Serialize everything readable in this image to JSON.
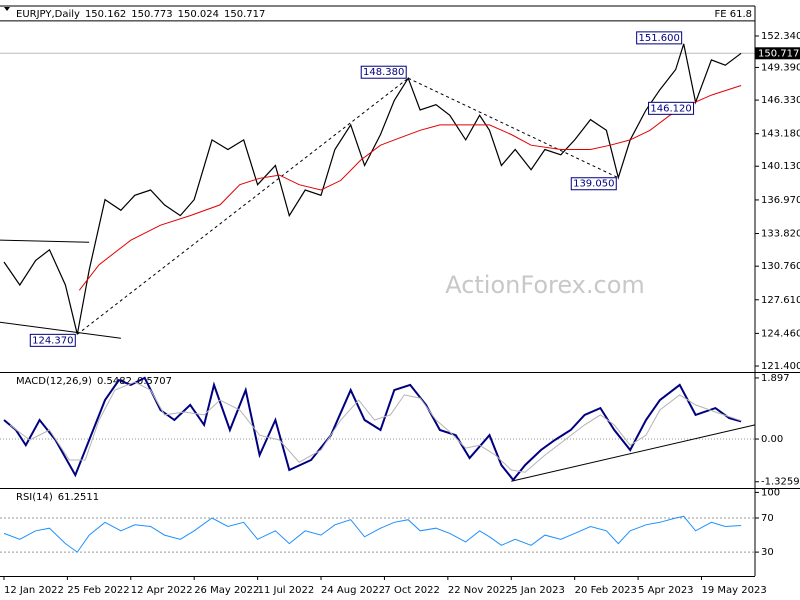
{
  "chart_data": [
    {
      "type": "line",
      "title": "EURJPY,Daily",
      "ohlc": [
        150.162,
        150.773,
        150.024,
        150.717
      ],
      "watermark": "ActionForex.com",
      "xlim": [
        -2,
        379
      ],
      "ylim": [
        120.84,
        155.15
      ],
      "yticks": [
        {
          "value": 152.34,
          "label": "152.340"
        },
        {
          "value": 149.39,
          "label": "149.390"
        },
        {
          "value": 146.33,
          "label": "146.330"
        },
        {
          "value": 143.18,
          "label": "143.180"
        },
        {
          "value": 140.13,
          "label": "140.130"
        },
        {
          "value": 136.97,
          "label": "136.970"
        },
        {
          "value": 133.82,
          "label": "133.820"
        },
        {
          "value": 130.76,
          "label": "130.760"
        },
        {
          "value": 127.61,
          "label": "127.610"
        },
        {
          "value": 124.46,
          "label": "124.460"
        },
        {
          "value": 121.4,
          "label": "121.400"
        }
      ],
      "series": [
        {
          "color": "#000000",
          "width": 1.2,
          "x": [
            0,
            8,
            16,
            23,
            31,
            37,
            43,
            51,
            59,
            66,
            74,
            81,
            89,
            96,
            105,
            113,
            121,
            128,
            137,
            144,
            152,
            160,
            167,
            175,
            182,
            190,
            197,
            204,
            210,
            218,
            225,
            233,
            240,
            245,
            251,
            258,
            266,
            273,
            281,
            288,
            296,
            304,
            310,
            316,
            324,
            331,
            339,
            343,
            349,
            357,
            364,
            372
          ],
          "values": [
            131.15,
            129,
            131.3,
            132.3,
            129,
            124.37,
            130.4,
            137,
            136,
            137.4,
            137.9,
            136.5,
            135.5,
            137,
            142.6,
            141.7,
            142.6,
            138.4,
            140.2,
            135.5,
            137.9,
            137.4,
            141.7,
            144,
            140.2,
            143.1,
            146.3,
            148.38,
            145.4,
            145.9,
            144.9,
            142.6,
            144.9,
            143.5,
            140.2,
            141.7,
            139.8,
            141.7,
            141.2,
            142.6,
            144.5,
            143.5,
            139.05,
            142.6,
            145.4,
            147.3,
            149.2,
            151.6,
            146.12,
            150.1,
            149.6,
            150.717
          ]
        },
        {
          "color": "#e00000",
          "width": 1,
          "x": [
            38,
            48,
            64,
            79,
            94,
            109,
            119,
            129,
            139,
            149,
            160,
            170,
            180,
            190,
            200,
            210,
            220,
            235,
            245,
            256,
            266,
            281,
            296,
            306,
            316,
            326,
            336,
            346,
            357,
            372
          ],
          "values": [
            128.5,
            130.9,
            133.2,
            134.6,
            135.5,
            136.5,
            138.4,
            139,
            139.3,
            138.4,
            137.9,
            138.8,
            140.7,
            142.1,
            142.8,
            143.5,
            144,
            144,
            144,
            143.1,
            142.1,
            141.7,
            141.7,
            142.1,
            142.6,
            143.5,
            144.9,
            145.9,
            146.8,
            147.7
          ]
        }
      ],
      "levels": [
        {
          "value": 153.75,
          "label": "FE 61.8"
        }
      ],
      "last_price": {
        "value": 150.717,
        "label": "150.717"
      },
      "annotations": [
        {
          "x": 37,
          "value": 124.37,
          "label": "124.370",
          "side": "below"
        },
        {
          "x": 204,
          "value": 148.38,
          "label": "148.380",
          "side": "above"
        },
        {
          "x": 343,
          "value": 151.6,
          "label": "151.600",
          "side": "above"
        },
        {
          "x": 349,
          "value": 146.12,
          "label": "146.120",
          "side": "below"
        },
        {
          "x": 310,
          "value": 139.05,
          "label": "139.050",
          "side": "below"
        }
      ],
      "trendlines": [
        {
          "x": [
            37,
            204
          ],
          "y": [
            124.37,
            148.38
          ],
          "style": "dashed"
        },
        {
          "x": [
            204,
            310
          ],
          "y": [
            148.38,
            139.05
          ],
          "style": "dashed"
        },
        {
          "x": [
            -2,
            43
          ],
          "y": [
            133.2,
            133.0
          ],
          "style": "solid"
        },
        {
          "x": [
            -2,
            59
          ],
          "y": [
            125.5,
            124.0
          ],
          "style": "solid"
        }
      ]
    },
    {
      "type": "line",
      "title": "MACD(12,26,9)",
      "readout": [
        0.5482,
        0.5707
      ],
      "xlim": [
        -2,
        379
      ],
      "ylim": [
        -1.52,
        2.05
      ],
      "yticks": [
        1.897,
        {
          "value": 0,
          "label": "0.00"
        },
        -1.3259
      ],
      "zero_line": true,
      "series": [
        {
          "color": "#000080",
          "width": 2,
          "x": [
            0,
            6,
            11,
            18,
            26,
            36,
            43,
            51,
            58,
            64,
            71,
            79,
            86,
            94,
            101,
            106,
            114,
            122,
            129,
            137,
            144,
            155,
            165,
            175,
            182,
            190,
            197,
            205,
            213,
            220,
            228,
            235,
            245,
            251,
            257,
            263,
            271,
            278,
            286,
            293,
            301,
            308,
            316,
            324,
            331,
            341,
            349,
            359,
            366,
            372
          ],
          "values": [
            0.59,
            0.28,
            -0.19,
            0.59,
            -0.03,
            -1.12,
            -0.03,
            1.21,
            1.83,
            1.68,
            1.9,
            0.9,
            0.59,
            1.06,
            0.44,
            1.68,
            0.28,
            1.52,
            -0.5,
            0.59,
            -0.96,
            -0.65,
            0.12,
            1.52,
            0.59,
            0.28,
            1.52,
            1.68,
            1.06,
            0.28,
            0.12,
            -0.59,
            0.12,
            -0.81,
            -1.27,
            -0.81,
            -0.34,
            -0.03,
            0.28,
            0.75,
            0.96,
            0.28,
            -0.34,
            0.59,
            1.21,
            1.68,
            0.75,
            0.96,
            0.65,
            0.5482
          ]
        },
        {
          "color": "#b4b4b4",
          "width": 1,
          "x": [
            3,
            13,
            23,
            33,
            41,
            48,
            56,
            66,
            74,
            81,
            91,
            101,
            109,
            119,
            129,
            139,
            149,
            160,
            170,
            179,
            187,
            195,
            202,
            210,
            218,
            225,
            233,
            240,
            248,
            256,
            263,
            273,
            283,
            293,
            301,
            308,
            316,
            324,
            331,
            341,
            349,
            359,
            372
          ],
          "values": [
            0.44,
            -0.03,
            0.28,
            -0.65,
            -0.65,
            0.59,
            1.52,
            1.77,
            1.52,
            0.75,
            0.84,
            0.75,
            1.21,
            0.9,
            0.12,
            -0.03,
            -0.72,
            -0.34,
            0.59,
            1.21,
            0.59,
            0.75,
            1.37,
            1.27,
            0.59,
            0.22,
            -0.28,
            -0.19,
            -0.5,
            -0.96,
            -1.03,
            -0.5,
            -0.03,
            0.44,
            0.75,
            0.44,
            -0.19,
            0.12,
            0.9,
            1.37,
            1.06,
            0.84,
            0.5707
          ]
        }
      ],
      "trendlines": [
        {
          "x": [
            256,
            379
          ],
          "y": [
            -1.31,
            0.44
          ],
          "style": "solid"
        }
      ]
    },
    {
      "type": "line",
      "title": "RSI(14)",
      "readout": [
        61.2511
      ],
      "xlim": [
        -2,
        379
      ],
      "ylim": [
        2,
        104
      ],
      "yticks": [
        100,
        70,
        30
      ],
      "levels": [
        70,
        30
      ],
      "xticks": [
        {
          "value": 0,
          "label": "12 Jan 2022"
        },
        {
          "value": 32,
          "label": "25 Feb 2022"
        },
        {
          "value": 64,
          "label": "12 Apr 2022"
        },
        {
          "value": 96,
          "label": "26 May 2022"
        },
        {
          "value": 128,
          "label": "11 Jul 2022"
        },
        {
          "value": 160,
          "label": "24 Aug 2022"
        },
        {
          "value": 192,
          "label": "7 Oct 2022"
        },
        {
          "value": 224,
          "label": "22 Nov 2022"
        },
        {
          "value": 256,
          "label": "5 Jan 2023"
        },
        {
          "value": 288,
          "label": "20 Feb 2023"
        },
        {
          "value": 320,
          "label": "5 Apr 2023"
        },
        {
          "value": 352,
          "label": "19 May 2023"
        }
      ],
      "series": [
        {
          "color": "#1e90ff",
          "width": 1,
          "x": [
            0,
            8,
            16,
            23,
            31,
            37,
            43,
            51,
            59,
            66,
            74,
            81,
            89,
            96,
            105,
            113,
            121,
            128,
            137,
            144,
            152,
            160,
            167,
            175,
            182,
            190,
            197,
            204,
            210,
            218,
            225,
            233,
            240,
            245,
            251,
            258,
            266,
            273,
            281,
            288,
            296,
            304,
            310,
            316,
            324,
            331,
            339,
            343,
            349,
            357,
            364,
            372
          ],
          "values": [
            52,
            45,
            55,
            58,
            40,
            30,
            50,
            65,
            55,
            62,
            60,
            50,
            45,
            55,
            70,
            60,
            65,
            45,
            55,
            40,
            55,
            50,
            62,
            68,
            48,
            58,
            65,
            68,
            55,
            58,
            52,
            42,
            55,
            48,
            38,
            45,
            38,
            50,
            45,
            52,
            60,
            55,
            40,
            55,
            62,
            65,
            70,
            72,
            55,
            65,
            60,
            61.2511
          ]
        }
      ]
    }
  ]
}
